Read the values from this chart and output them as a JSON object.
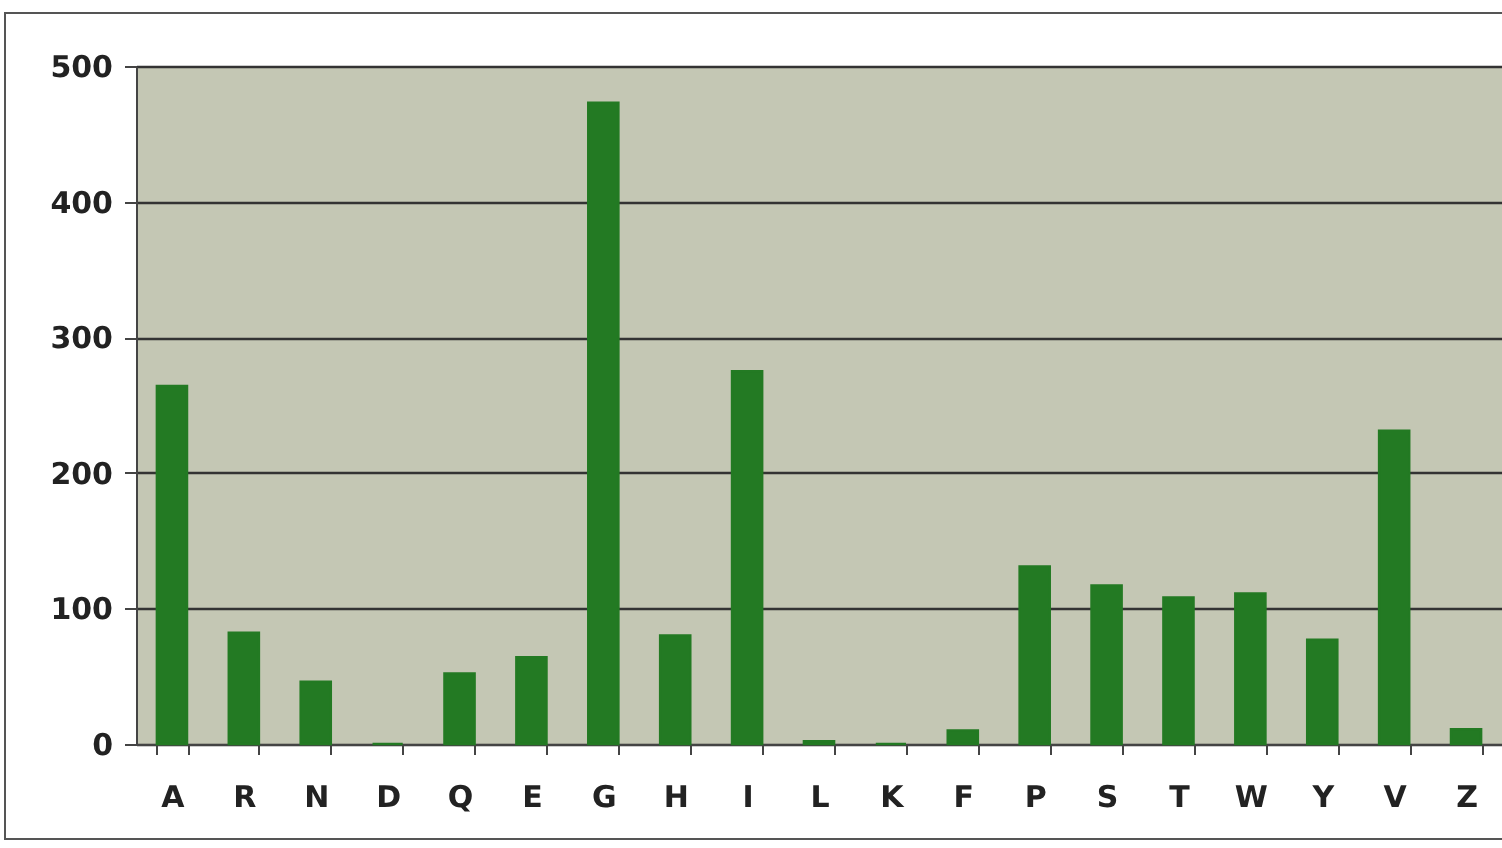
{
  "chart_data": {
    "type": "bar",
    "categories": [
      "A",
      "R",
      "N",
      "D",
      "Q",
      "E",
      "G",
      "H",
      "I",
      "L",
      "K",
      "F",
      "P",
      "S",
      "T",
      "W",
      "Y",
      "V",
      "Z"
    ],
    "values": [
      264,
      82,
      46,
      0,
      52,
      64,
      473,
      80,
      275,
      2,
      0,
      10,
      131,
      117,
      108,
      111,
      77,
      231,
      11
    ],
    "color": "#237a23",
    "ylim": [
      0,
      500
    ],
    "yticks": [
      0,
      100,
      200,
      300,
      400,
      500
    ],
    "grid": "y"
  }
}
